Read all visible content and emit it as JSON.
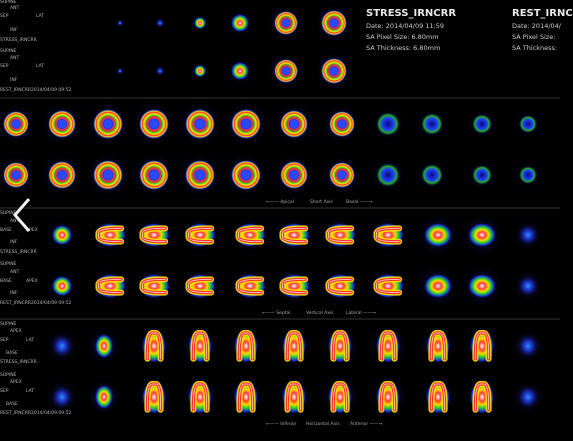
{
  "top": {
    "row1_labels": [
      "SUPINE",
      "ANT",
      "SEP",
      "LAT",
      "INF",
      "STRESS_IRNCRR"
    ],
    "row2_labels": [
      "SUPINE",
      "ANT",
      "SEP",
      "LAT",
      "INF",
      "REST_IRNCRR2014/04/09 09:52"
    ]
  },
  "stress_info": {
    "title": "STRESS_IRNCRR",
    "date": "Date: 2014/04/09 11:59",
    "pixel": "SA Pixel Size: 6.80mm",
    "thickness": "SA Thickness: 6.80mm"
  },
  "rest_info": {
    "title": "REST_IRNC",
    "date": "Date: 2014/04/",
    "pixel": "SA Pixel Size:",
    "thickness": "SA Thickness:"
  },
  "axes": {
    "short": {
      "left": "←—— Apical",
      "mid": "Short Axis",
      "right": "Basal ——→"
    },
    "vertical": {
      "left": "←—— Septal",
      "mid": "Vertical Axis",
      "right": "Lateral ——→"
    },
    "horizontal": {
      "left": "←—— Inferior",
      "mid": "Horizontal Axis",
      "right": "Anterior ——→"
    }
  },
  "sections": {
    "vla_stress_labels": [
      "SUPINE",
      "ANT",
      "BASE",
      "APEX",
      "INF",
      "STRESS_IRNCRR"
    ],
    "vla_rest_labels": [
      "SUPINE",
      "ANT",
      "BASE",
      "APEX",
      "INF",
      "REST_IRNCRR2014/04/09 09:52"
    ],
    "hla_stress_labels": [
      "SUPINE",
      "APEX",
      "SEP",
      "LAT",
      "BASE",
      "STRESS_IRNCRR"
    ],
    "hla_rest_labels": [
      "SUPINE",
      "APEX",
      "SEP",
      "LAT",
      "BASE",
      "REST_IRNCRR2014/04/09 09:52"
    ]
  },
  "nav": {
    "icon": "chevron-left-icon"
  },
  "colors": {
    "separator": "#1a1a1a",
    "background": "#000000"
  }
}
